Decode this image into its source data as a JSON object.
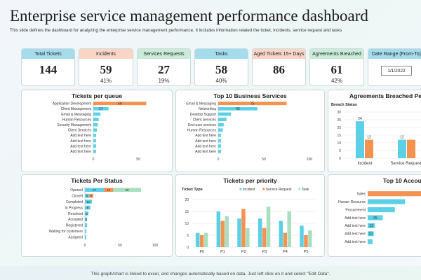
{
  "title": "Enterprise service management performance dashboard",
  "subtitle": "This slide defines the dashboard for analyzing the enterprise service management performance. It includes information related the ticket, incidents, service request and tasks",
  "footer": "This graph/chart is linked to excel, and changes automatically based on data. Just left click on it and select \"Edit Data\".",
  "colors": {
    "orange": "#f4924f",
    "blue": "#5bd0e6",
    "green": "#a9dfbf"
  },
  "kpis": [
    {
      "label": "Total Tickets",
      "value": "144",
      "pct": "",
      "color": "#a4dcee"
    },
    {
      "label": "Incidents",
      "value": "59",
      "pct": "41%",
      "color": "#f9d5c6"
    },
    {
      "label": "Services Requests",
      "value": "27",
      "pct": "19%",
      "color": "#c9ecd9"
    },
    {
      "label": "Tasks",
      "value": "58",
      "pct": "40%",
      "color": "#a4dcee"
    },
    {
      "label": "Aged Tickets 15+ Days",
      "value": "86",
      "pct": "",
      "color": "#f9d5c6"
    },
    {
      "label": "Agreements Breached",
      "value": "61",
      "pct": "42%",
      "color": "#c9ecd9"
    },
    {
      "label": "Date Range (From-To)",
      "value": "1/1/2022",
      "pct": "",
      "color": "#a4dcee"
    }
  ],
  "chart_data": [
    {
      "id": "queue",
      "type": "bar",
      "title": "Tickets per queue",
      "orientation": "horizontal",
      "categories": [
        "Application Development",
        "Client Management",
        "Email & Messaging",
        "Human Resources",
        "Security Management",
        "Client Services",
        "Add text here",
        "Add text here",
        "Add text here",
        "Add text here"
      ],
      "values": [
        59,
        17,
        8,
        6,
        5,
        4,
        3,
        3,
        3,
        3
      ],
      "bar_colors": [
        "#f4924f",
        "#5bd0e6",
        "#5bd0e6",
        "#5bd0e6",
        "#5bd0e6",
        "#5bd0e6",
        "#5bd0e6",
        "#5bd0e6",
        "#5bd0e6",
        "#5bd0e6"
      ],
      "data_labels": [
        "59",
        "17",
        "",
        "",
        "",
        "",
        "",
        "",
        "",
        ""
      ],
      "xlim": [
        0,
        100
      ],
      "x_ticks": [
        "0",
        "50",
        "100"
      ]
    },
    {
      "id": "business",
      "type": "bar",
      "title": "Top 10 Business Services",
      "orientation": "horizontal",
      "categories": [
        "Email & Messaging",
        "Networking",
        "Desktop Support",
        "Client Services",
        "End-user services",
        "Human Resources",
        "Add text here",
        "Add text here",
        "Add text here",
        "Add text here"
      ],
      "values": [
        75,
        43,
        14,
        9,
        6,
        5,
        3,
        3,
        3,
        3
      ],
      "bar_colors": [
        "#f4924f",
        "#5bd0e6",
        "#5bd0e6",
        "#5bd0e6",
        "#5bd0e6",
        "#5bd0e6",
        "#5bd0e6",
        "#5bd0e6",
        "#5bd0e6",
        "#5bd0e6"
      ],
      "data_labels": [
        "75",
        "43",
        "",
        "",
        "",
        "",
        "",
        "",
        "",
        ""
      ],
      "xlim": [
        0,
        100
      ],
      "x_ticks": [
        "0",
        "50",
        "100"
      ]
    },
    {
      "id": "breached",
      "type": "bar",
      "title": "Agreements Breached Per",
      "legend_title": "Breach Status",
      "categories": [
        "Incident",
        "Service Requests"
      ],
      "series": [
        {
          "values": [
            24,
            12
          ],
          "color": "#5bd0e6"
        },
        {
          "values": [
            12,
            12
          ],
          "color": "#f4924f"
        }
      ],
      "data_labels": [
        [
          "24",
          "12"
        ],
        [
          "12",
          ""
        ]
      ],
      "ylim": [
        0,
        30
      ],
      "y_ticks": [
        "0",
        "5",
        "10",
        "15",
        "20",
        "25",
        "30"
      ]
    },
    {
      "id": "status",
      "type": "bar",
      "title": "Tickets Per Status",
      "orientation": "horizontal",
      "stacked": true,
      "categories": [
        "Opened",
        "Closed",
        "Completed",
        "In Progress",
        "Resolved",
        "Accepted",
        "Registered",
        "Waiting for customers",
        "Assigned"
      ],
      "series": [
        {
          "values": [
            27,
            6,
            10,
            8,
            5,
            3,
            3,
            2,
            2
          ],
          "color": "#5bd0e6"
        },
        {
          "values": [
            13,
            6,
            0,
            0,
            0,
            0,
            0,
            0,
            0
          ],
          "color": "#f4924f"
        },
        {
          "values": [
            40,
            0,
            0,
            0,
            0,
            0,
            0,
            0,
            0
          ],
          "color": "#a9dfbf"
        }
      ],
      "data_labels": [
        [
          "27",
          "6",
          "10",
          "8",
          "5",
          "3",
          "",
          "",
          ""
        ],
        [
          "13",
          "6",
          "",
          "",
          "",
          "",
          "",
          "",
          ""
        ],
        [
          "40",
          "",
          "",
          "",
          "",
          "",
          "",
          "",
          ""
        ]
      ],
      "xlim": [
        0,
        100
      ],
      "x_ticks": [
        "0",
        "50",
        "100"
      ]
    },
    {
      "id": "priority",
      "type": "bar",
      "title": "Tickets per priority",
      "legend_title": "Ticket Type",
      "categories": [
        "P0",
        "P1",
        "P2",
        "P3",
        "P4",
        "P5"
      ],
      "series": [
        {
          "name": "Incident",
          "values": [
            6,
            15,
            12,
            12,
            11,
            9
          ],
          "color": "#5bd0e6"
        },
        {
          "name": "Service Request",
          "values": [
            5,
            11,
            16,
            8,
            6,
            5
          ],
          "color": "#f4924f"
        },
        {
          "name": "Task",
          "values": [
            6,
            13,
            8,
            17,
            15,
            7
          ],
          "color": "#a9dfbf"
        }
      ],
      "ylim": [
        0,
        20
      ],
      "y_ticks": [
        "0",
        "5",
        "10",
        "15",
        "20"
      ]
    },
    {
      "id": "accounts",
      "type": "bar",
      "title": "Top 10 Accounts",
      "orientation": "horizontal",
      "categories": [
        "Sales",
        "Human Resource",
        "Procurement",
        "Add text here",
        "Add text here",
        "Add text here",
        "Add text here"
      ],
      "values": [
        100,
        62,
        45,
        25,
        12,
        10,
        8
      ],
      "bar_colors": [
        "#f4924f",
        "#5bd0e6",
        "#5bd0e6",
        "#5bd0e6",
        "#5bd0e6",
        "#5bd0e6",
        "#5bd0e6"
      ],
      "data_labels": [
        "",
        "",
        "",
        "25",
        "12",
        "10",
        ""
      ],
      "xlim": [
        0,
        100
      ]
    }
  ]
}
